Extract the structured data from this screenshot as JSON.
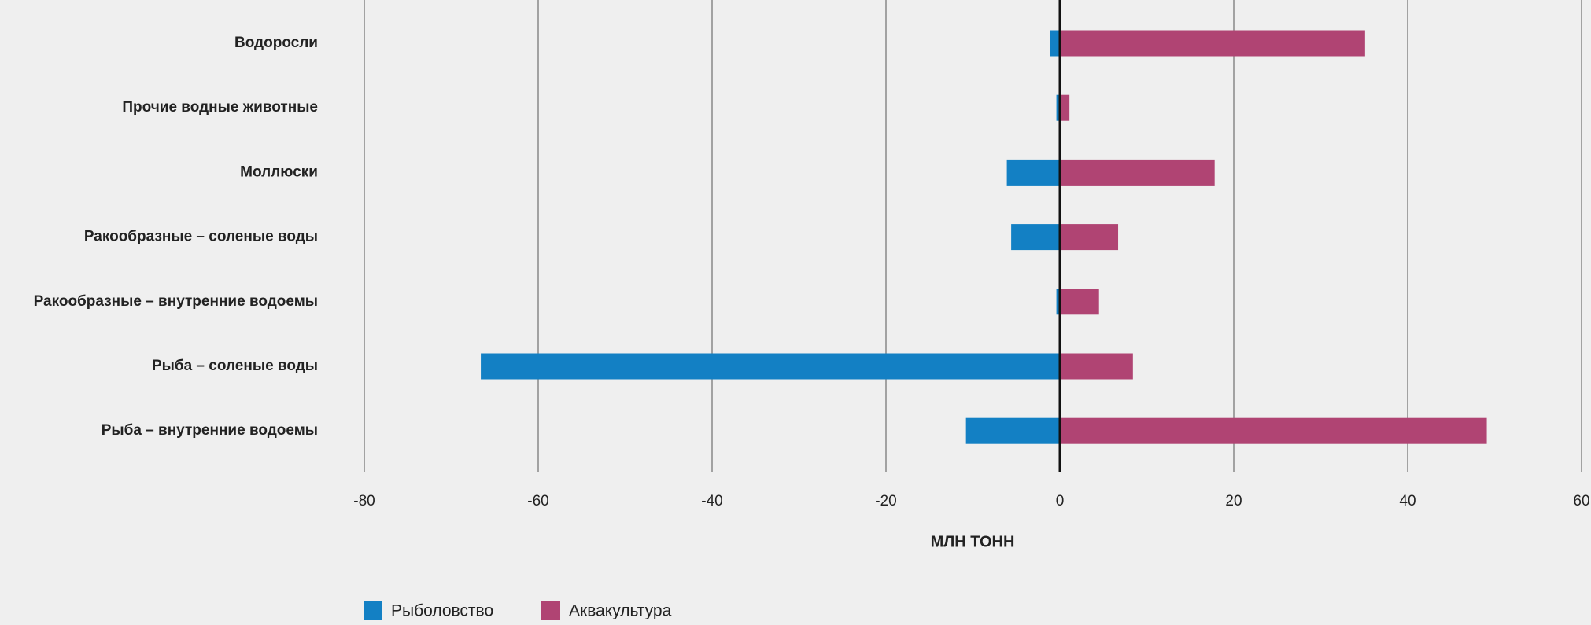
{
  "chart_data": {
    "type": "diverging-bar",
    "x_label": "МЛН ТОНН",
    "categories": [
      "Водоросли",
      "Прочие водные животные",
      "Моллюски",
      "Ракообразные – соленые воды",
      "Ракообразные – внутренние водоемы",
      "Рыба – соленые воды",
      "Рыба – внутренние водоемы"
    ],
    "series": [
      {
        "name": "Рыболовство",
        "color": "#1380c4",
        "values": [
          -1.1,
          -0.4,
          -6.1,
          -5.6,
          -0.4,
          -66.6,
          -10.8
        ]
      },
      {
        "name": "Аквакультура",
        "color": "#b04473",
        "values": [
          35.1,
          1.1,
          17.8,
          6.7,
          4.5,
          8.4,
          49.1
        ]
      }
    ],
    "xlim": [
      -80,
      60
    ],
    "xticks": [
      -80,
      -60,
      -40,
      -20,
      0,
      20,
      40,
      60
    ],
    "grid": true,
    "legend": "bottom"
  }
}
